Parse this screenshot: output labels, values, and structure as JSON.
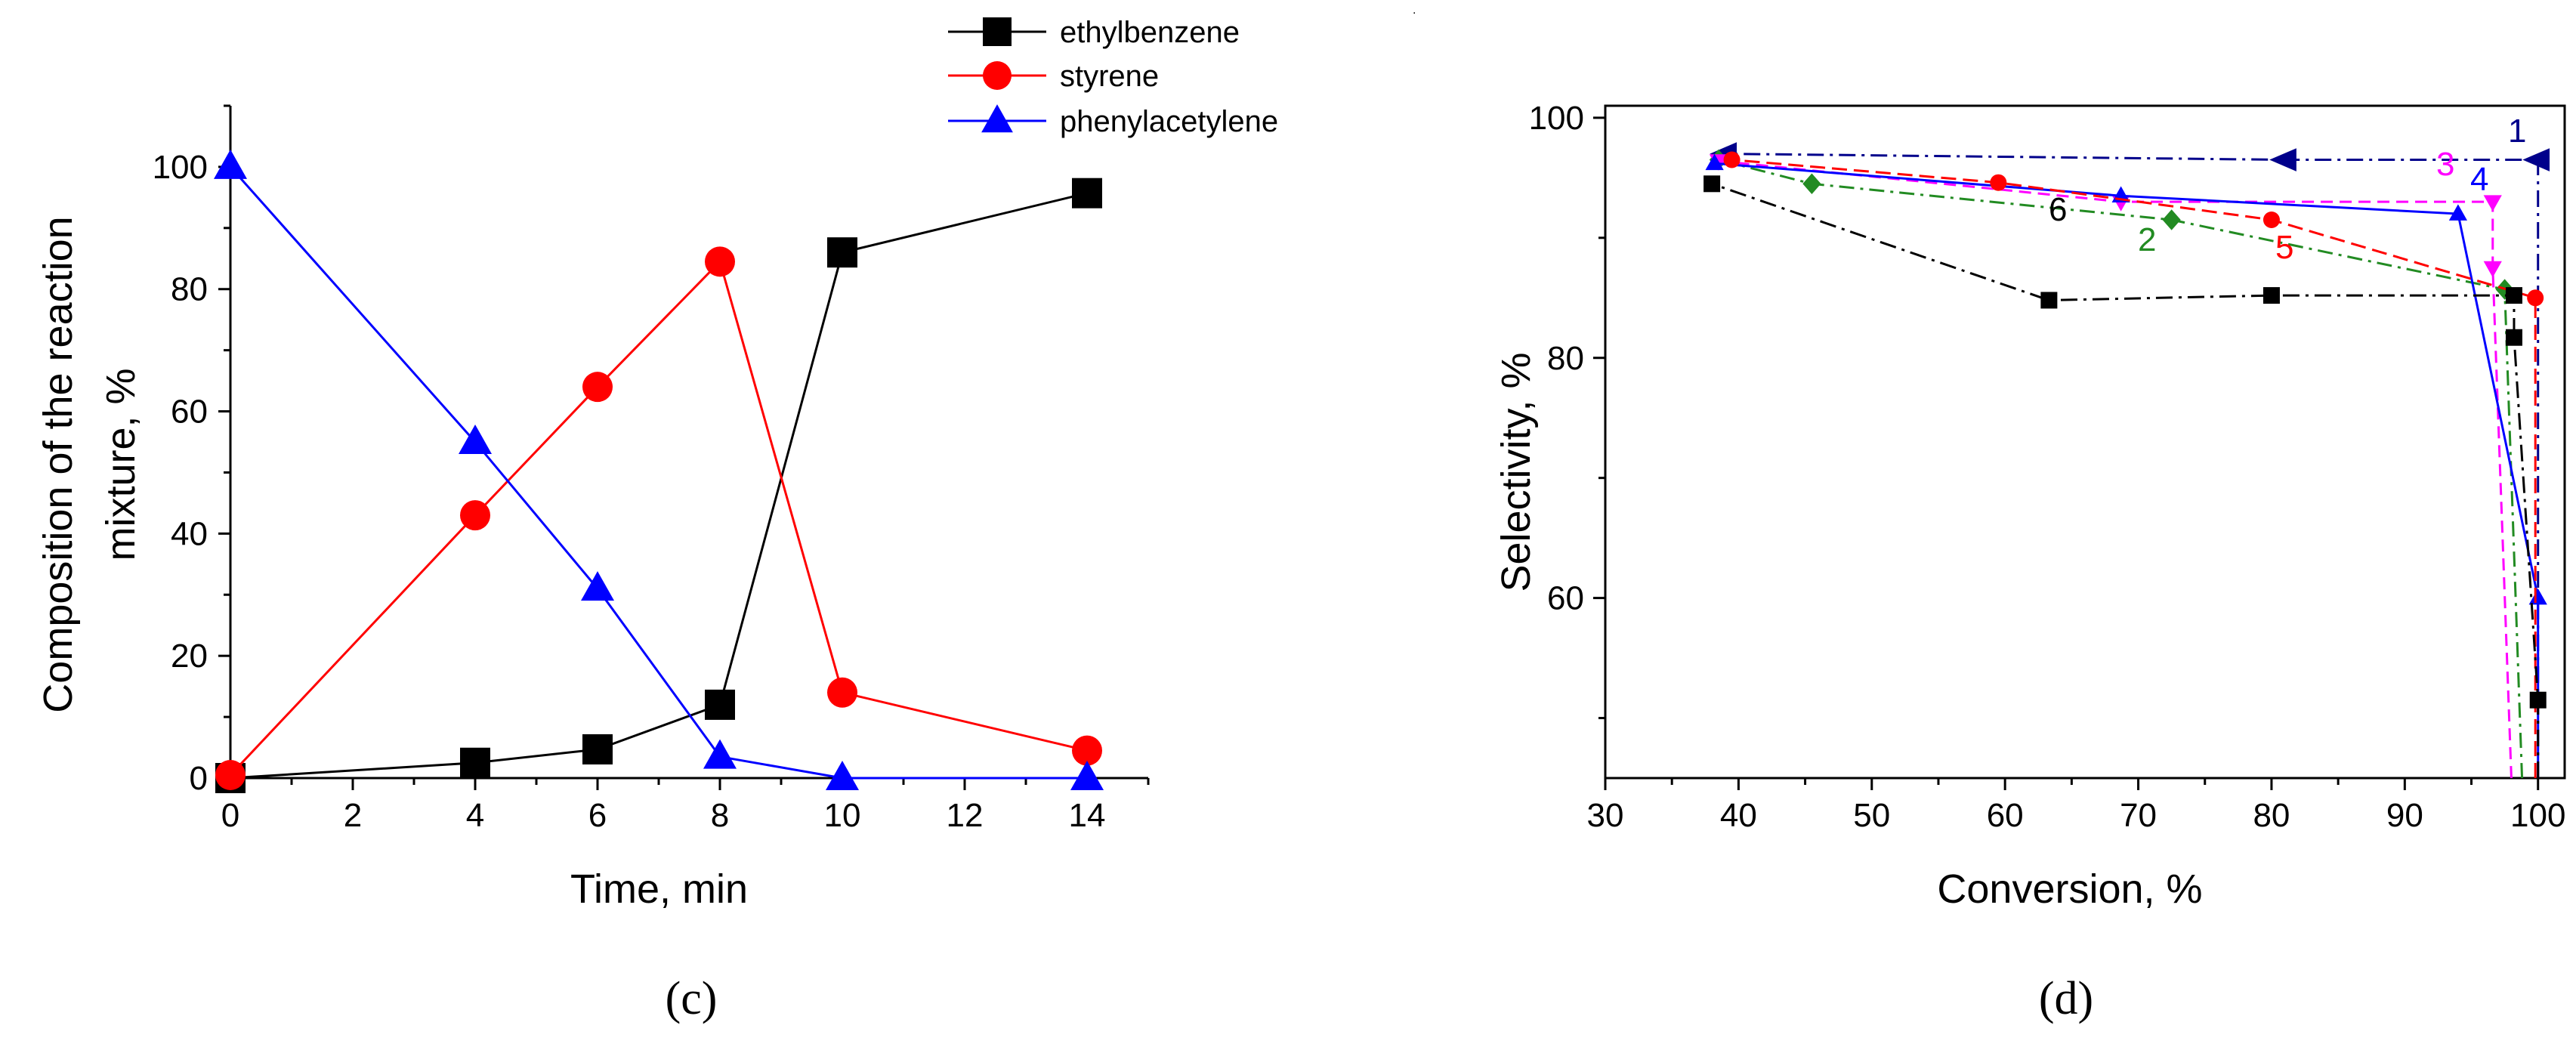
{
  "colors": {
    "ethylbenzene": "#000000",
    "styrene": "#ff0000",
    "phenylacetylene": "#0000ff",
    "curve1": "#00008b",
    "curve2": "#228b22",
    "curve3": "#ff00ff",
    "curve4": "#0000ff",
    "curve5": "#ff0000",
    "curve6": "#000000"
  },
  "chart_data": [
    {
      "type": "line",
      "panel_label": "(c)",
      "panel_label_letter": "c",
      "title": "",
      "xlabel": "Time, min",
      "ylabel_line1": "Composition of the reaction",
      "ylabel_line2": "mixture, %",
      "xlim": [
        0,
        15
      ],
      "ylim": [
        0,
        110
      ],
      "xticks": [
        0,
        2,
        4,
        6,
        8,
        10,
        12,
        14
      ],
      "yticks": [
        0,
        20,
        40,
        60,
        80,
        100
      ],
      "grid": false,
      "legend_position": "top-right, above plot",
      "series": [
        {
          "name": "ethylbenzene",
          "marker": "square",
          "x": [
            0,
            4,
            6,
            8,
            10,
            14
          ],
          "y": [
            0,
            2.5,
            4.7,
            12,
            86,
            95.7
          ]
        },
        {
          "name": "styrene",
          "marker": "circle",
          "x": [
            0,
            4,
            6,
            8,
            10,
            14
          ],
          "y": [
            0.5,
            43,
            64,
            84.5,
            14,
            4.5
          ]
        },
        {
          "name": "phenylacetylene",
          "marker": "triangle",
          "x": [
            0,
            4,
            6,
            8,
            10,
            14
          ],
          "y": [
            100,
            55,
            31,
            3.5,
            0,
            0
          ]
        }
      ]
    },
    {
      "type": "line",
      "panel_label": "(d)",
      "panel_label_letter": "d",
      "title": "",
      "xlabel": "Conversion, %",
      "ylabel": "Selectivity, %",
      "xlim": [
        30,
        102
      ],
      "ylim": [
        45,
        101
      ],
      "xticks": [
        30,
        40,
        50,
        60,
        70,
        80,
        90,
        100
      ],
      "yticks": [
        60,
        80,
        100
      ],
      "grid": false,
      "series": [
        {
          "name": "1",
          "marker": "arrow-left",
          "x": [
            100,
            100,
            81,
            39
          ],
          "y": [
            45,
            96.5,
            96.5,
            97
          ]
        },
        {
          "name": "2",
          "marker": "diamond",
          "x": [
            98.8,
            97.5,
            72.5,
            45.5,
            38.5
          ],
          "y": [
            45,
            85.7,
            91.5,
            94.5,
            96.5
          ]
        },
        {
          "name": "3",
          "marker": "triangle-down",
          "x": [
            98,
            96.6,
            96.6,
            68.7,
            38.5
          ],
          "y": [
            45,
            87.5,
            93,
            93,
            96.4
          ]
        },
        {
          "name": "4",
          "marker": "triangle",
          "x": [
            100,
            100,
            94,
            68.7,
            38.2
          ],
          "y": [
            45,
            60,
            92,
            93.5,
            96.2
          ]
        },
        {
          "name": "5",
          "marker": "circle",
          "x": [
            99.8,
            99.8,
            80,
            59.5,
            39.5
          ],
          "y": [
            45,
            85,
            91.5,
            94.6,
            96.5
          ]
        },
        {
          "name": "6",
          "marker": "square",
          "x": [
            100,
            100,
            98.2,
            98.2,
            80,
            63.3,
            38
          ],
          "y": [
            45,
            51.5,
            81.7,
            85.2,
            85.2,
            84.8,
            94.5
          ]
        }
      ]
    }
  ]
}
